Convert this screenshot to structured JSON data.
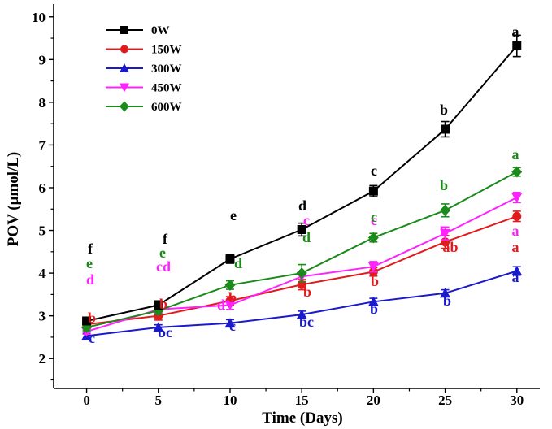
{
  "chart_data": {
    "type": "line",
    "title": "",
    "xlabel": "Time (Days)",
    "ylabel": "POV (μmol/L)",
    "x": [
      0,
      5,
      10,
      15,
      20,
      25,
      30
    ],
    "xticks": [
      "0",
      "5",
      "10",
      "15",
      "20",
      "25",
      "30"
    ],
    "yticks": [
      "2",
      "3",
      "4",
      "5",
      "6",
      "7",
      "8",
      "9",
      "10"
    ],
    "xlim": [
      -2.3,
      31.6
    ],
    "ylim": [
      1.3,
      10.3
    ],
    "series": [
      {
        "name": "0W",
        "color": "#000000",
        "marker": "square",
        "values": [
          2.88,
          3.25,
          4.33,
          5.02,
          5.92,
          7.37,
          9.32
        ],
        "errors": [
          0.08,
          0.1,
          0.1,
          0.15,
          0.13,
          0.18,
          0.25
        ],
        "labels": [
          "f",
          "f",
          "e",
          "d",
          "c",
          "b",
          "a"
        ]
      },
      {
        "name": "150W",
        "color": "#e31a1c",
        "marker": "circle",
        "values": [
          2.8,
          3.0,
          3.35,
          3.73,
          4.03,
          4.73,
          5.33
        ],
        "errors": [
          0.08,
          0.1,
          0.1,
          0.12,
          0.1,
          0.15,
          0.12
        ],
        "labels": [
          "b",
          "b",
          "b",
          "b",
          "b",
          "ab",
          "a"
        ]
      },
      {
        "name": "300W",
        "color": "#1a1acc",
        "marker": "triangle-up",
        "values": [
          2.53,
          2.73,
          2.83,
          3.03,
          3.33,
          3.53,
          4.05
        ],
        "errors": [
          0.06,
          0.06,
          0.08,
          0.08,
          0.08,
          0.08,
          0.1
        ],
        "labels": [
          "c",
          "bc",
          "c",
          "bc",
          "b",
          "b",
          "a"
        ]
      },
      {
        "name": "450W",
        "color": "#ff22ff",
        "marker": "triangle-down",
        "values": [
          2.63,
          3.15,
          3.25,
          3.92,
          4.15,
          4.93,
          5.77
        ],
        "errors": [
          0.06,
          0.08,
          0.1,
          0.12,
          0.12,
          0.15,
          0.12
        ],
        "labels": [
          "d",
          "cd",
          "d",
          "c",
          "c",
          "b",
          "a"
        ]
      },
      {
        "name": "600W",
        "color": "#1a8a1a",
        "marker": "diamond",
        "values": [
          2.73,
          3.12,
          3.72,
          4.0,
          4.83,
          5.47,
          6.37
        ],
        "errors": [
          0.08,
          0.08,
          0.1,
          0.2,
          0.1,
          0.15,
          0.1
        ],
        "labels": [
          "e",
          "e",
          "d",
          "d",
          "c",
          "b",
          "a"
        ]
      }
    ],
    "legend_position": "top-left"
  }
}
